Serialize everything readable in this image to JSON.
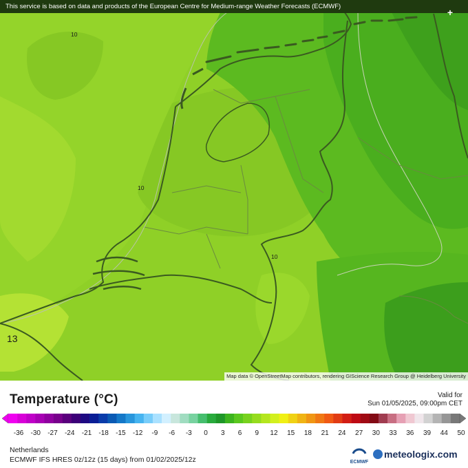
{
  "map": {
    "notice": "This service is based on data and products of the European Centre for Medium-range Weather Forecasts (ECMWF)",
    "attribution": "Map data © OpenStreetMap contributors, rendering GIScience Research Group @ Heidelberg University",
    "contour_labels": [
      "10",
      "10",
      "10"
    ],
    "corner_mark": "+",
    "extreme_label": "13",
    "region_colors": {
      "sea_west": "#94d42a",
      "land_center": "#8acb25",
      "north_east": "#52b41e",
      "far_east": "#3ea01c",
      "south_west_warm": "#a8de32"
    }
  },
  "legend": {
    "title": "Temperature (°C)",
    "valid_label": "Valid for",
    "valid_time": "Sun 01/05/2025, 09:00pm CET",
    "ticks": [
      "-36",
      "-30",
      "-27",
      "-24",
      "-21",
      "-18",
      "-15",
      "-12",
      "-9",
      "-6",
      "-3",
      "0",
      "3",
      "6",
      "9",
      "12",
      "15",
      "18",
      "21",
      "24",
      "27",
      "30",
      "33",
      "36",
      "39",
      "44",
      "50"
    ],
    "colors": [
      "#f000f0",
      "#d800d8",
      "#c000c8",
      "#a800b4",
      "#9000a0",
      "#78008c",
      "#5a007d",
      "#3c0078",
      "#1e0a82",
      "#0a1e96",
      "#0a3caa",
      "#0a5ab4",
      "#1478c8",
      "#2896dc",
      "#46b4f0",
      "#78cdfa",
      "#aae1ff",
      "#d2f0ff",
      "#c8e6dc",
      "#a0dcc0",
      "#78d2a0",
      "#46be6e",
      "#28aa3c",
      "#1e9628",
      "#3cb41e",
      "#5ac81e",
      "#78d21e",
      "#96dc1e",
      "#b4e61e",
      "#d2f01e",
      "#f0f014",
      "#f0d214",
      "#f0b414",
      "#f09614",
      "#f07814",
      "#f05a14",
      "#e13c14",
      "#d21e14",
      "#be0a14",
      "#a00a14",
      "#820a14",
      "#a03c50",
      "#c86e82",
      "#e6a0b4",
      "#f0c8d2",
      "#f0e6eb",
      "#d2d2d2",
      "#b4b4b4",
      "#969696",
      "#787878"
    ]
  },
  "footer": {
    "region": "Netherlands",
    "model": "ECMWF IFS HRES 0z/12z (15 days) from  01/02/2025/12z",
    "ecmwf_label": "ECMWF",
    "brand": "meteologix.com"
  }
}
